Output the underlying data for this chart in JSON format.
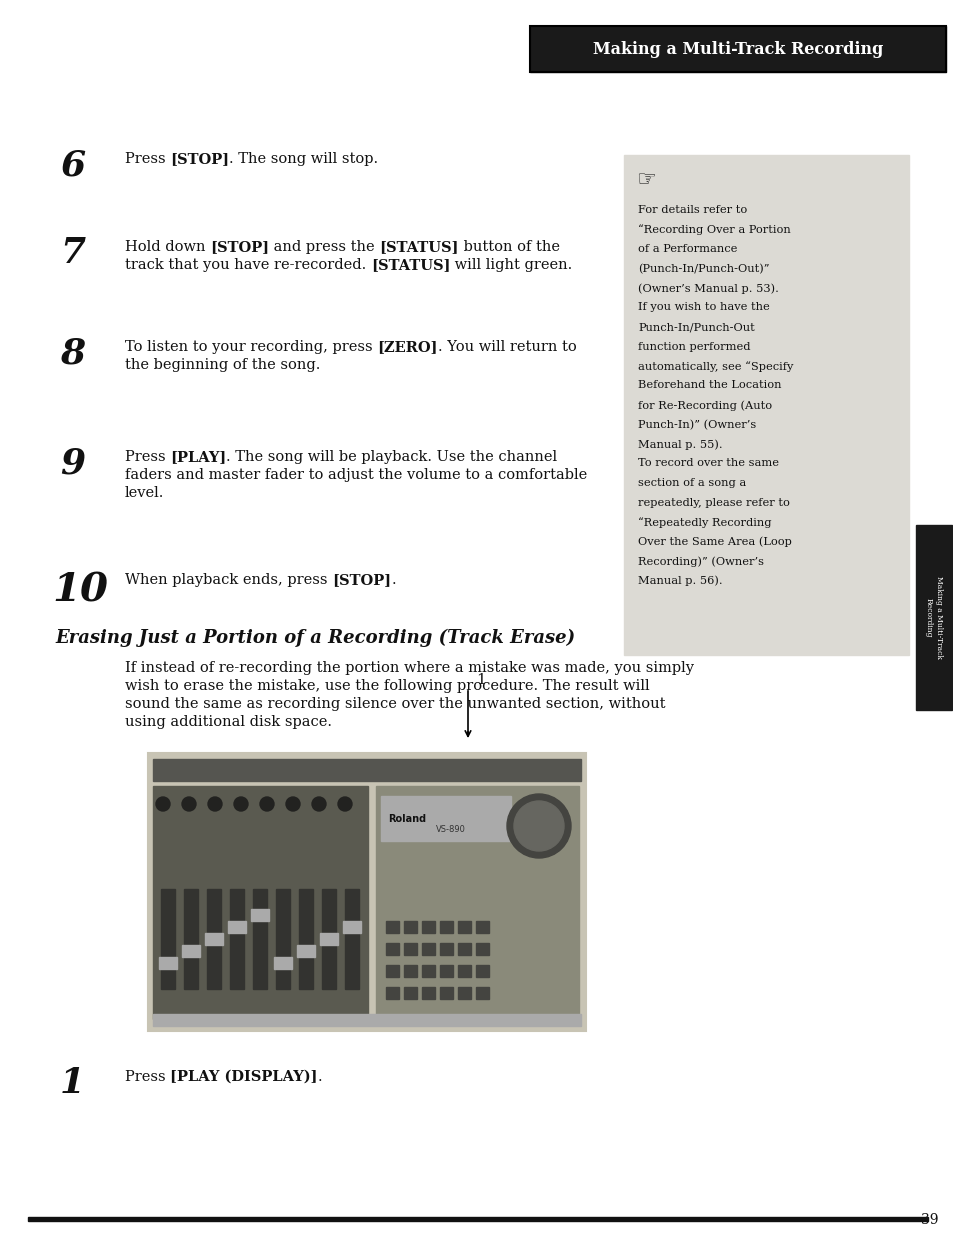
{
  "main_bg": "#ffffff",
  "header_bg": "#1a1a1a",
  "header_text": "Making a Multi-Track Recording",
  "header_text_color": "#ffffff",
  "sidebar_bg": "#1a1a1a",
  "note_bg": "#dcdad4",
  "note_text_lines": [
    "For details refer to",
    "“Recording Over a Portion",
    "of a Performance",
    "(Punch-In/Punch-Out)”",
    "(Owner’s Manual p. 53).",
    "If you wish to have the",
    "Punch-In/Punch-Out",
    "function performed",
    "automatically, see “Specify",
    "Beforehand the Location",
    "for Re-Recording (Auto",
    "Punch-In)” (Owner’s",
    "Manual p. 55).",
    "To record over the same",
    "section of a song a",
    "repeatedly, please refer to",
    "“Repeatedly Recording",
    "Over the Same Area (Loop",
    "Recording)” (Owner’s",
    "Manual p. 56)."
  ],
  "section_title": "Erasing Just a Portion of a Recording (Track Erase)",
  "section_body_lines": [
    "If instead of re-recording the portion where a mistake was made, you simply",
    "wish to erase the mistake, use the following procedure. The result will",
    "sound the same as recording silence over the unwanted section, without",
    "using additional disk space."
  ],
  "page_number": "39"
}
